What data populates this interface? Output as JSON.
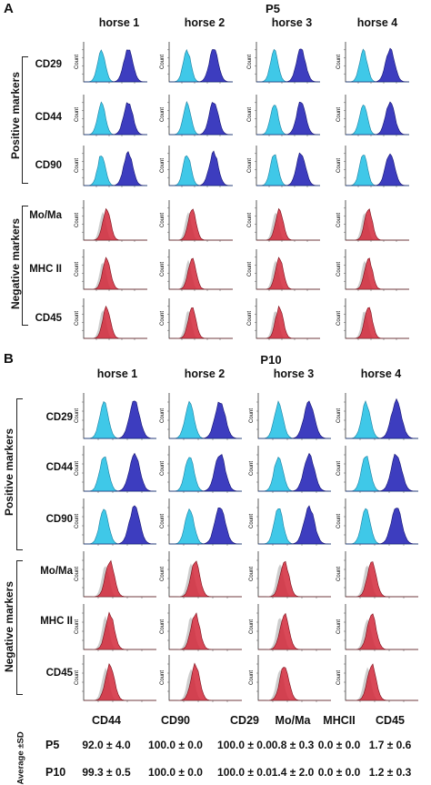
{
  "panelA": {
    "letter": "A",
    "passage": "P5"
  },
  "panelB": {
    "letter": "B",
    "passage": "P10"
  },
  "horses": [
    "horse 1",
    "horse 2",
    "horse 3",
    "horse 4"
  ],
  "groups": {
    "positive": "Positive markers",
    "negative": "Negative markers"
  },
  "positive_markers": [
    "CD29",
    "CD44",
    "CD90"
  ],
  "negative_markers": [
    "Mo/Ma",
    "MHC II",
    "CD45"
  ],
  "axis_label": "Count",
  "table": {
    "side_label": "Average ±SD",
    "headers": [
      "CD44",
      "CD90",
      "CD29",
      "Mo/Ma",
      "MHCII",
      "CD45"
    ],
    "rows": [
      {
        "label": "P5",
        "values": [
          "92.0 ± 4.0",
          "100.0 ± 0.0",
          "100.0 ± 0.0",
          "0.8 ± 0.3",
          "0.0 ± 0.0",
          "1.7 ± 0.6"
        ]
      },
      {
        "label": "P10",
        "values": [
          "99.3 ± 0.5",
          "100.0 ± 0.0",
          "100.0 ± 0.0",
          "1.4 ± 2.0",
          "0.0 ± 0.0",
          "1.2 ± 0.3"
        ]
      }
    ]
  },
  "colors": {
    "control_cyan": "#3fc8e8",
    "positive_blue": "#2828b8",
    "negative_red": "#d2283a",
    "isotype_gray": "#c8c8c8"
  }
}
